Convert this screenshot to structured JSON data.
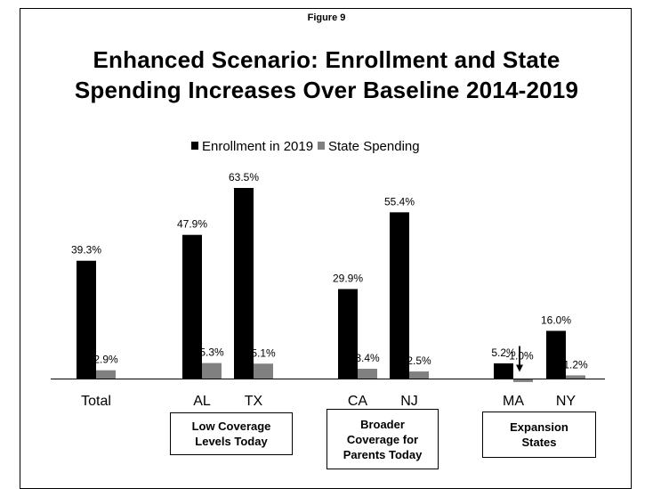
{
  "figure_label": "Figure 9",
  "chart_data": {
    "type": "bar",
    "title_lines": [
      "Enhanced Scenario:  Enrollment and State",
      "Spending Increases Over Baseline 2014-2019"
    ],
    "categories": [
      "Total",
      "AL",
      "TX",
      "CA",
      "NJ",
      "MA",
      "NY"
    ],
    "series": [
      {
        "name": "Enrollment in 2019",
        "color": "#000000",
        "values": [
          39.3,
          47.9,
          63.5,
          29.9,
          55.4,
          5.2,
          16.0
        ],
        "labels": [
          "39.3%",
          "47.9%",
          "63.5%",
          "29.9%",
          "55.4%",
          "5.2%",
          "16.0%"
        ]
      },
      {
        "name": "State Spending",
        "color": "#808080",
        "values": [
          2.9,
          5.3,
          5.1,
          3.4,
          2.5,
          -1.0,
          1.2
        ],
        "labels": [
          "2.9%",
          "5.3%",
          "5.1%",
          "3.4%",
          "2.5%",
          "-1.0%",
          "1.2%"
        ]
      }
    ],
    "ylim": [
      0,
      70
    ],
    "legend_position": "top",
    "gridlines": false,
    "annotations": [
      "arrow pointing to MA State Spending -1.0%"
    ],
    "groups": [
      {
        "label": "Low Coverage\nLevels Today",
        "categories": [
          "AL",
          "TX"
        ]
      },
      {
        "label": "Broader\nCoverage for\nParents Today",
        "categories": [
          "CA",
          "NJ"
        ]
      },
      {
        "label": "Expansion\nStates",
        "categories": [
          "MA",
          "NY"
        ]
      }
    ]
  }
}
